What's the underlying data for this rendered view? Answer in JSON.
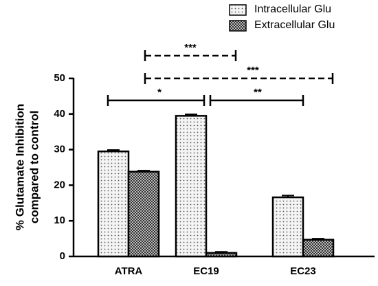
{
  "chart_data": {
    "type": "bar",
    "ylabel": [
      "% Glutamate Inhibition",
      "compared to control"
    ],
    "categories": [
      "ATRA",
      "EC19",
      "EC23"
    ],
    "series": [
      {
        "name": "Intracellular Glu",
        "color": "#e8e8e8",
        "values": [
          29.5,
          39.5,
          16.6
        ],
        "errors": [
          0.4,
          0.4,
          0.5
        ]
      },
      {
        "name": "Extracellular Glu",
        "color": "#6e6e6e",
        "values": [
          23.8,
          1.0,
          4.7
        ],
        "errors": [
          0.3,
          0.3,
          0.3
        ]
      }
    ],
    "ylim": [
      0,
      50
    ],
    "yticks": [
      0,
      10,
      20,
      30,
      40,
      50
    ],
    "annotations": [
      "***",
      "***",
      "*",
      "**"
    ],
    "legend": "top-right"
  }
}
